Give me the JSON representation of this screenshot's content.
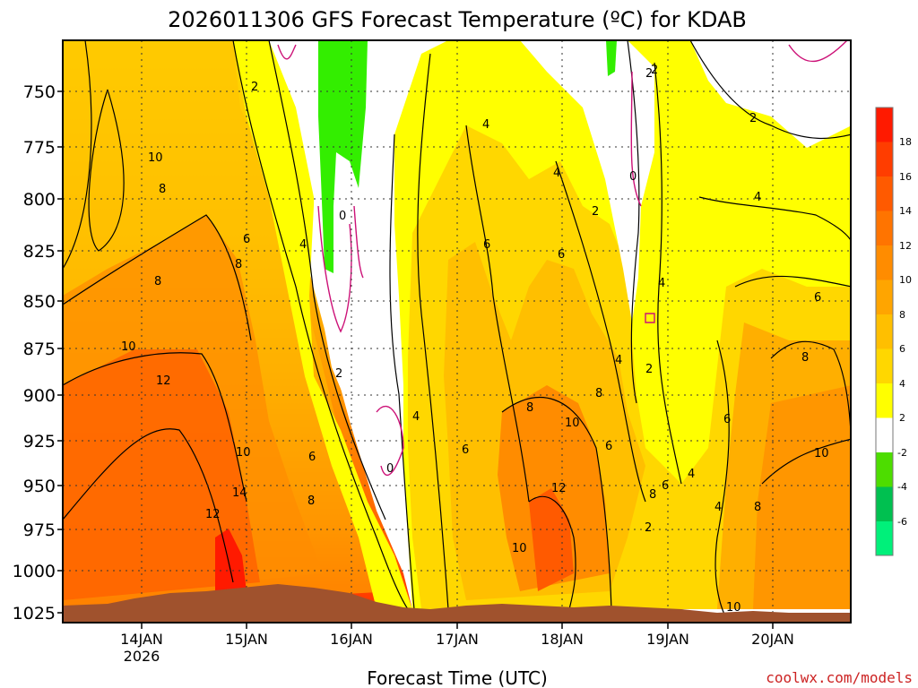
{
  "chart_data": {
    "type": "contour",
    "title": "2026011306 GFS Forecast Temperature (ºC) for KDAB",
    "xlabel": "Forecast Time (UTC)",
    "ylabel": "",
    "credit": "coolwx.com/models",
    "x_ticks": [
      {
        "label": "14JAN",
        "sub": "2026"
      },
      {
        "label": "15JAN",
        "sub": ""
      },
      {
        "label": "16JAN",
        "sub": ""
      },
      {
        "label": "17JAN",
        "sub": ""
      },
      {
        "label": "18JAN",
        "sub": ""
      },
      {
        "label": "19JAN",
        "sub": ""
      },
      {
        "label": "20JAN",
        "sub": ""
      }
    ],
    "y_ticks": [
      "750",
      "775",
      "800",
      "825",
      "850",
      "875",
      "900",
      "925",
      "950",
      "975",
      "1000",
      "1025"
    ],
    "colorbar": {
      "labels": [
        "18",
        "16",
        "14",
        "12",
        "10",
        "8",
        "6",
        "4",
        "2",
        "-2",
        "-4",
        "-6"
      ],
      "colors": [
        "#ff1a00",
        "#ff3d00",
        "#ff5a00",
        "#ff7400",
        "#ff8c00",
        "#ffa500",
        "#ffbf00",
        "#ffd700",
        "#ffff00",
        "#ffffff",
        "#4ddd00",
        "#00c050",
        "#00f07a"
      ]
    },
    "contour_labels": [
      "2",
      "8",
      "8",
      "10",
      "12",
      "6",
      "8",
      "4",
      "2",
      "0",
      "10",
      "14",
      "12",
      "6",
      "8",
      "2",
      "4",
      "0",
      "4",
      "6",
      "4",
      "6",
      "8",
      "8",
      "10",
      "12",
      "10",
      "4",
      "2",
      "0",
      "2",
      "6",
      "8",
      "6",
      "2",
      "4",
      "2",
      "8",
      "6",
      "6",
      "4",
      "4",
      "4",
      "2",
      "10",
      "6",
      "8",
      "10",
      "10"
    ]
  }
}
